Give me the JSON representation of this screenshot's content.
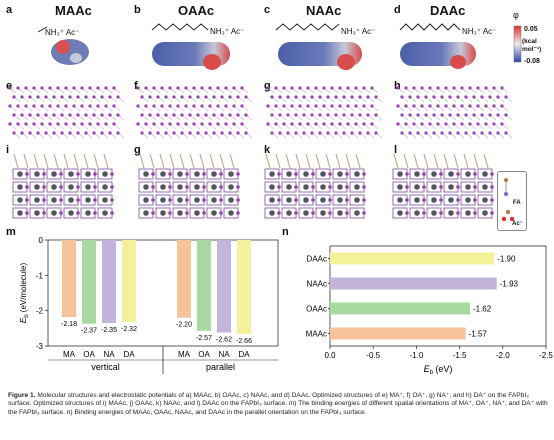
{
  "panels": {
    "a": {
      "label": "a",
      "title": "MAAc",
      "chem": "NH₃⁺ Ac⁻"
    },
    "b": {
      "label": "b",
      "title": "OAAc",
      "chem": "NH₃⁺ Ac⁻"
    },
    "c": {
      "label": "c",
      "title": "NAAc",
      "chem": "NH₃⁺ Ac⁻"
    },
    "d": {
      "label": "d",
      "title": "DAAc",
      "chem": "NH₃⁺ Ac⁻"
    },
    "e": "e",
    "f": "f",
    "g1": "g",
    "h": "h",
    "i": "i",
    "g2": "g",
    "k": "k",
    "l": "l",
    "m": "m",
    "n": "n"
  },
  "colorbar": {
    "symbol": "φ",
    "max": "0.05",
    "unit": "(kcal mol⁻¹)",
    "min": "-0.08"
  },
  "legend_box": {
    "fa": "FA",
    "ac": "Ac⁻"
  },
  "chart_data": [
    {
      "type": "bar",
      "panel": "m",
      "ylabel": "E_b (eV/molecule)",
      "ylim": [
        -3,
        0
      ],
      "yticks": [
        0,
        -1,
        -2,
        -3
      ],
      "groups": [
        {
          "name": "vertical",
          "categories": [
            "MA",
            "OA",
            "NA",
            "DA"
          ],
          "values": [
            -2.18,
            -2.37,
            -2.35,
            -2.32
          ],
          "labels": [
            "-2.18",
            "-2.37",
            "-2.35",
            "-2.32"
          ]
        },
        {
          "name": "parallel",
          "categories": [
            "MA",
            "OA",
            "NA",
            "DA"
          ],
          "values": [
            -2.2,
            -2.57,
            -2.62,
            -2.66
          ],
          "labels": [
            "-2.20",
            "-2.57",
            "-2.62",
            "-2.66"
          ]
        }
      ],
      "colors": [
        "#f7c39a",
        "#a8d9a0",
        "#c3b4dc",
        "#f5f09a"
      ]
    },
    {
      "type": "bar",
      "panel": "n",
      "orientation": "horizontal",
      "xlabel": "E_b (eV)",
      "xlim": [
        0,
        -2.5
      ],
      "xticks": [
        "0.0",
        "-0.5",
        "-1.0",
        "-1.5",
        "-2.0",
        "-2.5"
      ],
      "categories": [
        "DAAc",
        "NAAc",
        "OAAc",
        "MAAc"
      ],
      "values": [
        -1.9,
        -1.93,
        -1.62,
        -1.57
      ],
      "labels": [
        "-1.90",
        "-1.93",
        "-1.62",
        "-1.57"
      ],
      "colors": [
        "#f5f09a",
        "#c3b4dc",
        "#a8d9a0",
        "#f7c39a"
      ]
    }
  ],
  "caption": {
    "figure": "Figure 1.",
    "text": "Molecular structures and electrostatic potentials of a) MAAc, b) OAAc, c) NAAc, and d) DAAc. Optimized structures of e) MA⁺, f) OA⁺, g) NA⁺, and h) DA⁺ on the FAPbI₃ surface. Optimized structures of i) MAAc, j) OAAc, k) NAAc, and l) DAAc on the FAPbI₃ surface. m) The binding energies of different spatial orientations of MA⁺, OA⁺, NA⁺, and DA⁺ with the FAPbI₃ surface. n) Binding energies of MAAc, OAAc, NAAc, and DAAc in the parallel orientation on the FAPbI₃ surface."
  }
}
